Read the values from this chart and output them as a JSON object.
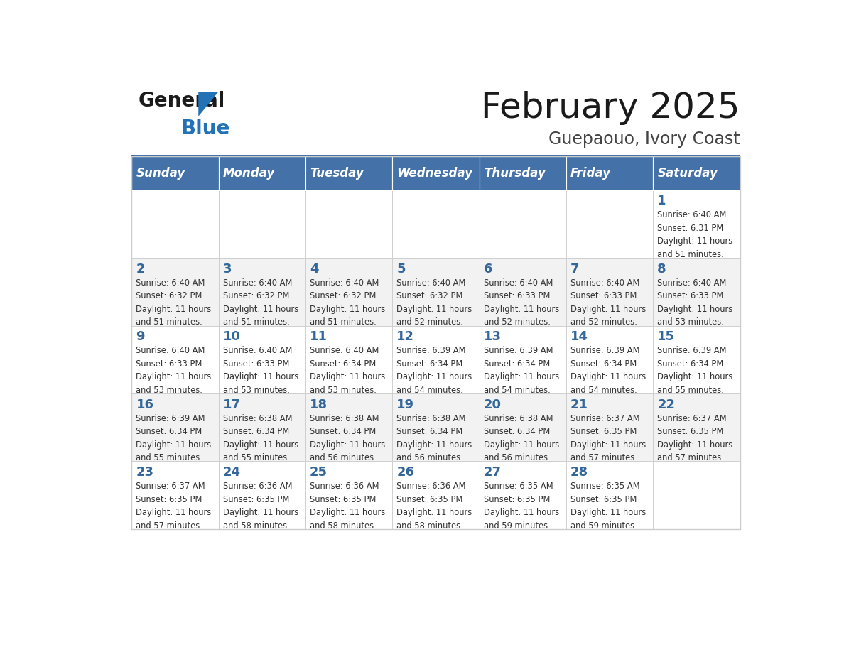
{
  "title": "February 2025",
  "subtitle": "Guepaouo, Ivory Coast",
  "header_bg": "#4472a8",
  "header_text_color": "#ffffff",
  "cell_bg_light": "#f2f2f2",
  "cell_bg_white": "#ffffff",
  "day_number_color": "#336699",
  "sun_info_color": "#333333",
  "grid_color": "#cccccc",
  "divider_color": "#4472a8",
  "logo_text_color": "#1a1a1a",
  "logo_blue_color": "#2272b5",
  "days_of_week": [
    "Sunday",
    "Monday",
    "Tuesday",
    "Wednesday",
    "Thursday",
    "Friday",
    "Saturday"
  ],
  "weeks": [
    [
      {
        "day": null,
        "info": null
      },
      {
        "day": null,
        "info": null
      },
      {
        "day": null,
        "info": null
      },
      {
        "day": null,
        "info": null
      },
      {
        "day": null,
        "info": null
      },
      {
        "day": null,
        "info": null
      },
      {
        "day": 1,
        "info": "Sunrise: 6:40 AM\nSunset: 6:31 PM\nDaylight: 11 hours\nand 51 minutes."
      }
    ],
    [
      {
        "day": 2,
        "info": "Sunrise: 6:40 AM\nSunset: 6:32 PM\nDaylight: 11 hours\nand 51 minutes."
      },
      {
        "day": 3,
        "info": "Sunrise: 6:40 AM\nSunset: 6:32 PM\nDaylight: 11 hours\nand 51 minutes."
      },
      {
        "day": 4,
        "info": "Sunrise: 6:40 AM\nSunset: 6:32 PM\nDaylight: 11 hours\nand 51 minutes."
      },
      {
        "day": 5,
        "info": "Sunrise: 6:40 AM\nSunset: 6:32 PM\nDaylight: 11 hours\nand 52 minutes."
      },
      {
        "day": 6,
        "info": "Sunrise: 6:40 AM\nSunset: 6:33 PM\nDaylight: 11 hours\nand 52 minutes."
      },
      {
        "day": 7,
        "info": "Sunrise: 6:40 AM\nSunset: 6:33 PM\nDaylight: 11 hours\nand 52 minutes."
      },
      {
        "day": 8,
        "info": "Sunrise: 6:40 AM\nSunset: 6:33 PM\nDaylight: 11 hours\nand 53 minutes."
      }
    ],
    [
      {
        "day": 9,
        "info": "Sunrise: 6:40 AM\nSunset: 6:33 PM\nDaylight: 11 hours\nand 53 minutes."
      },
      {
        "day": 10,
        "info": "Sunrise: 6:40 AM\nSunset: 6:33 PM\nDaylight: 11 hours\nand 53 minutes."
      },
      {
        "day": 11,
        "info": "Sunrise: 6:40 AM\nSunset: 6:34 PM\nDaylight: 11 hours\nand 53 minutes."
      },
      {
        "day": 12,
        "info": "Sunrise: 6:39 AM\nSunset: 6:34 PM\nDaylight: 11 hours\nand 54 minutes."
      },
      {
        "day": 13,
        "info": "Sunrise: 6:39 AM\nSunset: 6:34 PM\nDaylight: 11 hours\nand 54 minutes."
      },
      {
        "day": 14,
        "info": "Sunrise: 6:39 AM\nSunset: 6:34 PM\nDaylight: 11 hours\nand 54 minutes."
      },
      {
        "day": 15,
        "info": "Sunrise: 6:39 AM\nSunset: 6:34 PM\nDaylight: 11 hours\nand 55 minutes."
      }
    ],
    [
      {
        "day": 16,
        "info": "Sunrise: 6:39 AM\nSunset: 6:34 PM\nDaylight: 11 hours\nand 55 minutes."
      },
      {
        "day": 17,
        "info": "Sunrise: 6:38 AM\nSunset: 6:34 PM\nDaylight: 11 hours\nand 55 minutes."
      },
      {
        "day": 18,
        "info": "Sunrise: 6:38 AM\nSunset: 6:34 PM\nDaylight: 11 hours\nand 56 minutes."
      },
      {
        "day": 19,
        "info": "Sunrise: 6:38 AM\nSunset: 6:34 PM\nDaylight: 11 hours\nand 56 minutes."
      },
      {
        "day": 20,
        "info": "Sunrise: 6:38 AM\nSunset: 6:34 PM\nDaylight: 11 hours\nand 56 minutes."
      },
      {
        "day": 21,
        "info": "Sunrise: 6:37 AM\nSunset: 6:35 PM\nDaylight: 11 hours\nand 57 minutes."
      },
      {
        "day": 22,
        "info": "Sunrise: 6:37 AM\nSunset: 6:35 PM\nDaylight: 11 hours\nand 57 minutes."
      }
    ],
    [
      {
        "day": 23,
        "info": "Sunrise: 6:37 AM\nSunset: 6:35 PM\nDaylight: 11 hours\nand 57 minutes."
      },
      {
        "day": 24,
        "info": "Sunrise: 6:36 AM\nSunset: 6:35 PM\nDaylight: 11 hours\nand 58 minutes."
      },
      {
        "day": 25,
        "info": "Sunrise: 6:36 AM\nSunset: 6:35 PM\nDaylight: 11 hours\nand 58 minutes."
      },
      {
        "day": 26,
        "info": "Sunrise: 6:36 AM\nSunset: 6:35 PM\nDaylight: 11 hours\nand 58 minutes."
      },
      {
        "day": 27,
        "info": "Sunrise: 6:35 AM\nSunset: 6:35 PM\nDaylight: 11 hours\nand 59 minutes."
      },
      {
        "day": 28,
        "info": "Sunrise: 6:35 AM\nSunset: 6:35 PM\nDaylight: 11 hours\nand 59 minutes."
      },
      {
        "day": null,
        "info": null
      }
    ]
  ]
}
